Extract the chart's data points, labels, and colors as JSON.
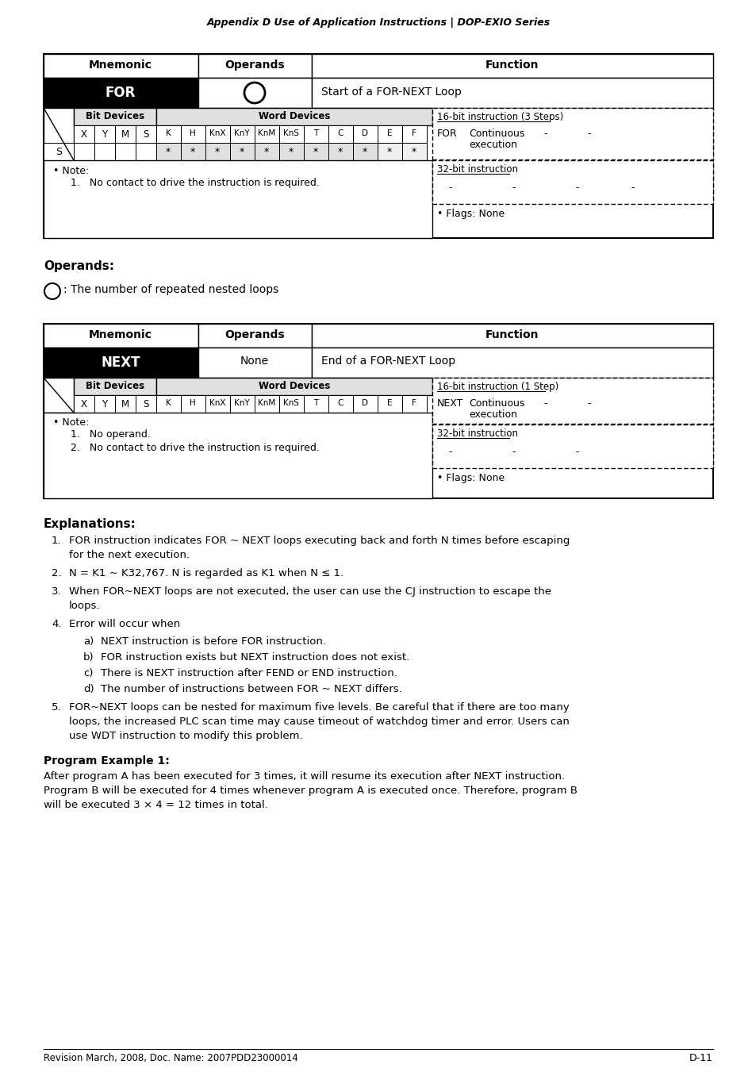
{
  "header_text": "Appendix D Use of Application Instructions | DOP-EXIO Series",
  "page_num": "D-11",
  "footer_text": "Revision March, 2008, Doc. Name: 2007PDD23000014",
  "table1_mnemonic": "FOR",
  "table1_function": "Start of a FOR-NEXT Loop",
  "table1_16bit": "16-bit instruction (3 Steps)",
  "table1_for_label": "FOR",
  "table1_continuous": "Continuous",
  "table1_execution": "execution",
  "table1_32bit": "32-bit instruction",
  "table1_note": "Note:",
  "table1_note1": "No contact to drive the instruction is required.",
  "table1_flags": "Flags: None",
  "operands_label": "Operands:",
  "operands_circle_text": ": The number of repeated nested loops",
  "table2_mnemonic": "NEXT",
  "table2_operand": "None",
  "table2_function": "End of a FOR-NEXT Loop",
  "table2_16bit": "16-bit instruction (1 Step)",
  "table2_next_label": "NEXT",
  "table2_continuous": "Continuous",
  "table2_execution": "execution",
  "table2_32bit": "32-bit instruction",
  "table2_note": "Note:",
  "table2_note1": "No operand.",
  "table2_note2": "No contact to drive the instruction is required.",
  "table2_flags": "Flags: None",
  "explanations_title": "Explanations:",
  "exp1": "FOR instruction indicates FOR ~ NEXT loops executing back and forth N times before escaping\nfor the next execution.",
  "exp2": "N = K1 ~ K32,767. N is regarded as K1 when N ≤ 1.",
  "exp3": "When FOR~NEXT loops are not executed, the user can use the CJ instruction to escape the\nloops.",
  "exp4_intro": "Error will occur when",
  "exp4a": "NEXT instruction is before FOR instruction.",
  "exp4b": "FOR instruction exists but NEXT instruction does not exist.",
  "exp4c": "There is NEXT instruction after FEND or END instruction.",
  "exp4d": "The number of instructions between FOR ~ NEXT differs.",
  "exp5": "FOR~NEXT loops can be nested for maximum five levels. Be careful that if there are too many\nloops, the increased PLC scan time may cause timeout of watchdog timer and error. Users can\nuse WDT instruction to modify this problem.",
  "program_title": "Program Example 1:",
  "program_text": "After program A has been executed for 3 times, it will resume its execution after NEXT instruction.\nProgram B will be executed for 4 times whenever program A is executed once. Therefore, program B\nwill be executed 3 × 4 = 12 times in total.",
  "bg_color": "#ffffff",
  "light_gray": "#e0e0e0"
}
